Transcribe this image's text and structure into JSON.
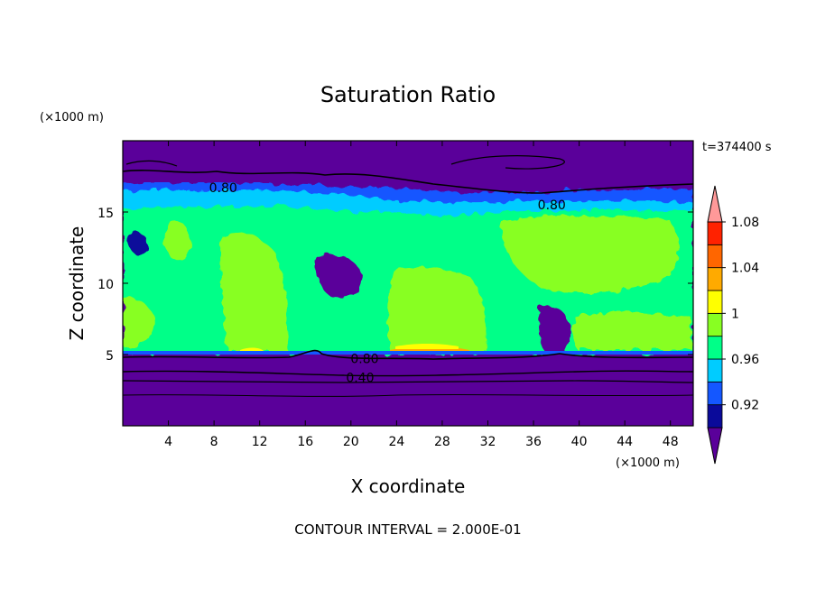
{
  "chart_data": {
    "type": "heatmap",
    "title": "Saturation Ratio",
    "xlabel": "X coordinate",
    "ylabel": "Z coordinate",
    "x_unit": "(×1000 m)",
    "y_unit": "(×1000 m)",
    "time_label": "t=374400 s",
    "footer": "CONTOUR INTERVAL = 2.000E-01",
    "xlim": [
      0,
      50
    ],
    "ylim": [
      0,
      20
    ],
    "x_ticks": [
      "4",
      "8",
      "12",
      "16",
      "20",
      "24",
      "28",
      "32",
      "36",
      "40",
      "44",
      "48"
    ],
    "y_ticks": [
      "5",
      "10",
      "15"
    ],
    "contour_labels": [
      {
        "text": "0.80",
        "x": 8.8,
        "z": 16.7
      },
      {
        "text": "0.80",
        "x": 37.6,
        "z": 15.5
      },
      {
        "text": "0.80",
        "x": 21.2,
        "z": 4.7
      },
      {
        "text": "0.40",
        "x": 20.8,
        "z": 3.4
      }
    ],
    "colorbar": {
      "levels": [
        0.9,
        0.92,
        0.94,
        0.96,
        0.98,
        1.0,
        1.02,
        1.04,
        1.06,
        1.08,
        1.1
      ],
      "tick_labels": [
        "0.92",
        "0.96",
        "1",
        "1.04",
        "1.08"
      ],
      "colors": [
        "#5a009a",
        "#0a0a9a",
        "#1457ff",
        "#00ccff",
        "#00ff88",
        "#88ff22",
        "#ffff00",
        "#ffaa00",
        "#ff6600",
        "#ff2200",
        "#ff9999"
      ]
    }
  }
}
